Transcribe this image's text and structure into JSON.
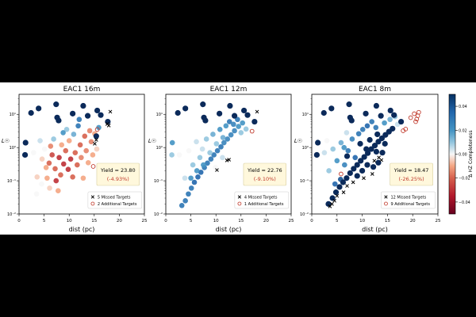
{
  "chart_data": {
    "type": "scatter",
    "xlabel": "dist (pc)",
    "ylabel": "L☉",
    "xlim": [
      0,
      25
    ],
    "ylim": [
      0.01,
      40
    ],
    "yscale": "log",
    "x_ticks": [
      "0",
      "5",
      "10",
      "15",
      "20",
      "25"
    ],
    "y_ticks": [
      "10⁻²",
      "10⁻¹",
      "10⁰",
      "10¹"
    ],
    "colorbar": {
      "label": "Δ HZ Completeness",
      "ticks": [
        "0.04",
        "0.02",
        "0.00",
        "−0.02",
        "−0.04"
      ],
      "range": [
        -0.05,
        0.05
      ],
      "colormap": "RdBu (red = negative, blue = positive)"
    },
    "legend_labels": {
      "missed": "Missed Targets",
      "additional": "Additional Targets"
    },
    "yield_label": "Yield",
    "panels": [
      {
        "title": "EAC1 16m",
        "yield": "23.80",
        "yield_change": "(-4.93%)",
        "missed_count": "5",
        "additional_count": "2",
        "dominant": "red",
        "missed_targets": [
          [
            18.2,
            12.0
          ],
          [
            17.6,
            5.1
          ],
          [
            17.9,
            4.6
          ],
          [
            15.4,
            1.7
          ],
          [
            15.1,
            1.3
          ]
        ],
        "additional_targets": [
          [
            15.6,
            3.5
          ],
          [
            14.8,
            0.27
          ]
        ],
        "navy_points": [
          [
            2.4,
            11.0
          ],
          [
            3.9,
            15.0
          ],
          [
            7.4,
            20.0
          ],
          [
            7.6,
            8.0
          ],
          [
            7.9,
            6.5
          ],
          [
            10.7,
            10.5
          ],
          [
            12.8,
            18.0
          ],
          [
            13.7,
            9.0
          ],
          [
            15.6,
            13.0
          ],
          [
            16.3,
            9.5
          ],
          [
            17.7,
            6.0
          ],
          [
            1.3,
            1.4
          ],
          [
            1.2,
            0.6
          ],
          [
            15.4,
            2.2
          ]
        ],
        "cloud": [
          [
            2.9,
            0.7,
            0.0
          ],
          [
            3.6,
            0.13,
            -0.005
          ],
          [
            3.5,
            0.04,
            0.0
          ],
          [
            4.2,
            1.6,
            0.005
          ],
          [
            4.6,
            0.45,
            -0.005
          ],
          [
            5.1,
            0.9,
            0.0
          ],
          [
            5.6,
            0.12,
            -0.01
          ],
          [
            6.0,
            0.34,
            -0.02
          ],
          [
            6.1,
            0.06,
            -0.005
          ],
          [
            6.6,
            0.6,
            -0.025
          ],
          [
            6.9,
            1.8,
            0.01
          ],
          [
            7.2,
            0.23,
            -0.02
          ],
          [
            7.4,
            0.1,
            -0.03
          ],
          [
            7.8,
            0.05,
            -0.01
          ],
          [
            8.0,
            0.5,
            -0.03
          ],
          [
            8.3,
            0.15,
            -0.02
          ],
          [
            8.5,
            1.2,
            -0.01
          ],
          [
            8.9,
            0.32,
            -0.03
          ],
          [
            9.3,
            0.8,
            -0.02
          ],
          [
            9.5,
            3.5,
            0.01
          ],
          [
            9.8,
            0.22,
            -0.03
          ],
          [
            10.0,
            1.6,
            -0.01
          ],
          [
            10.3,
            0.45,
            -0.03
          ],
          [
            10.7,
            0.13,
            -0.02
          ],
          [
            10.9,
            2.5,
            0.015
          ],
          [
            11.2,
            0.7,
            -0.02
          ],
          [
            11.6,
            0.3,
            -0.02
          ],
          [
            11.8,
            4.5,
            0.03
          ],
          [
            12.2,
            1.2,
            -0.02
          ],
          [
            12.4,
            0.5,
            -0.015
          ],
          [
            12.8,
            0.12,
            -0.01
          ],
          [
            13.1,
            2.2,
            -0.02
          ],
          [
            13.4,
            0.8,
            -0.015
          ],
          [
            13.8,
            0.35,
            -0.01
          ],
          [
            14.1,
            3.2,
            -0.015
          ],
          [
            14.4,
            1.5,
            -0.015
          ],
          [
            14.7,
            0.6,
            -0.01
          ],
          [
            15.1,
            2.6,
            -0.01
          ],
          [
            15.5,
            0.9,
            -0.005
          ],
          [
            15.9,
            4.0,
            0.02
          ],
          [
            12.0,
            7.0,
            0.03
          ],
          [
            8.8,
            2.8,
            0.02
          ],
          [
            6.3,
            1.1,
            -0.015
          ],
          [
            5.4,
            0.25,
            -0.01
          ],
          [
            4.5,
            0.08,
            0.0
          ]
        ]
      },
      {
        "title": "EAC1 12m",
        "yield": "22.76",
        "yield_change": "(-9.10%)",
        "missed_count": "4",
        "additional_count": "1",
        "dominant": "blue",
        "missed_targets": [
          [
            18.2,
            12.0
          ],
          [
            12.6,
            0.43
          ],
          [
            12.2,
            0.41
          ],
          [
            10.2,
            0.21
          ]
        ],
        "additional_targets": [
          [
            17.2,
            3.1
          ]
        ],
        "navy_points": [
          [
            2.4,
            11.0
          ],
          [
            3.9,
            15.0
          ],
          [
            7.4,
            20.0
          ],
          [
            7.6,
            8.0
          ],
          [
            7.9,
            6.5
          ],
          [
            10.7,
            10.5
          ],
          [
            12.8,
            18.0
          ],
          [
            13.7,
            9.0
          ],
          [
            15.6,
            13.0
          ],
          [
            16.3,
            9.5
          ],
          [
            17.7,
            6.0
          ]
        ],
        "cloud": [
          [
            3.2,
            0.018,
            0.03
          ],
          [
            3.9,
            0.025,
            0.03
          ],
          [
            4.5,
            0.04,
            0.03
          ],
          [
            5.1,
            0.06,
            0.03
          ],
          [
            5.7,
            0.09,
            0.035
          ],
          [
            6.4,
            0.13,
            0.035
          ],
          [
            7.0,
            0.18,
            0.035
          ],
          [
            7.7,
            0.25,
            0.03
          ],
          [
            8.3,
            0.34,
            0.03
          ],
          [
            9.0,
            0.45,
            0.03
          ],
          [
            9.6,
            0.6,
            0.03
          ],
          [
            10.3,
            0.8,
            0.03
          ],
          [
            11.0,
            1.05,
            0.03
          ],
          [
            11.6,
            1.4,
            0.025
          ],
          [
            12.3,
            1.8,
            0.025
          ],
          [
            13.0,
            2.4,
            0.025
          ],
          [
            13.7,
            3.2,
            0.025
          ],
          [
            14.5,
            4.3,
            0.02
          ],
          [
            15.3,
            5.5,
            0.02
          ],
          [
            2.7,
            0.6,
            0.0
          ],
          [
            3.8,
            0.12,
            0.005
          ],
          [
            4.6,
            0.8,
            0.0
          ],
          [
            5.4,
            0.3,
            0.01
          ],
          [
            6.1,
            1.5,
            0.005
          ],
          [
            6.8,
            0.5,
            0.01
          ],
          [
            7.3,
            0.9,
            0.005
          ],
          [
            8.1,
            1.8,
            0.01
          ],
          [
            8.8,
            0.7,
            0.01
          ],
          [
            9.4,
            2.5,
            0.015
          ],
          [
            10.1,
            1.3,
            0.01
          ],
          [
            10.8,
            3.5,
            0.02
          ],
          [
            11.4,
            2.0,
            0.015
          ],
          [
            12.0,
            4.5,
            0.02
          ],
          [
            12.7,
            6.0,
            0.03
          ],
          [
            13.5,
            5.0,
            0.025
          ],
          [
            14.3,
            7.0,
            0.03
          ],
          [
            15.0,
            2.8,
            0.01
          ],
          [
            16.0,
            3.6,
            0.01
          ],
          [
            5.0,
            0.12,
            0.02
          ],
          [
            6.2,
            0.2,
            0.02
          ],
          [
            7.5,
            0.3,
            0.02
          ],
          [
            9.9,
            0.25,
            0.0
          ],
          [
            11.3,
            0.5,
            0.005
          ],
          [
            1.3,
            1.4,
            0.02
          ],
          [
            1.2,
            0.6,
            0.01
          ]
        ]
      },
      {
        "title": "EAC1 8m",
        "yield": "18.47",
        "yield_change": "(-26.25%)",
        "missed_count": "12",
        "additional_count": "9",
        "dominant": "navy",
        "missed_targets": [
          [
            3.6,
            0.017
          ],
          [
            4.0,
            0.02
          ],
          [
            4.5,
            0.025
          ],
          [
            5.0,
            0.035
          ],
          [
            6.3,
            0.045
          ],
          [
            7.0,
            0.07
          ],
          [
            8.2,
            0.09
          ],
          [
            10.3,
            0.12
          ],
          [
            12.0,
            0.16
          ],
          [
            12.4,
            0.4
          ],
          [
            13.3,
            0.5
          ],
          [
            13.8,
            0.42
          ]
        ],
        "additional_targets": [
          [
            21.2,
            11.5
          ],
          [
            21.0,
            9.0
          ],
          [
            20.8,
            7.2
          ],
          [
            20.6,
            6.0
          ],
          [
            20.3,
            10.4
          ],
          [
            19.6,
            7.9
          ],
          [
            18.6,
            3.6
          ],
          [
            18.1,
            3.2
          ],
          [
            5.8,
            0.16
          ]
        ],
        "navy_points": [
          [
            2.4,
            11.0
          ],
          [
            3.9,
            15.0
          ],
          [
            7.4,
            20.0
          ],
          [
            7.6,
            8.0
          ],
          [
            7.9,
            6.5
          ],
          [
            10.7,
            10.5
          ],
          [
            12.8,
            18.0
          ],
          [
            13.7,
            9.0
          ],
          [
            15.6,
            13.0
          ],
          [
            16.3,
            9.5
          ],
          [
            17.7,
            6.0
          ],
          [
            1.2,
            1.4
          ],
          [
            1.0,
            0.6
          ],
          [
            3.3,
            0.02
          ],
          [
            4.1,
            0.03
          ],
          [
            4.8,
            0.045
          ],
          [
            5.5,
            0.065
          ],
          [
            6.2,
            0.09
          ],
          [
            6.9,
            0.12
          ],
          [
            7.6,
            0.17
          ],
          [
            8.3,
            0.23
          ],
          [
            9.0,
            0.3
          ],
          [
            9.7,
            0.4
          ],
          [
            10.4,
            0.52
          ],
          [
            11.1,
            0.68
          ],
          [
            11.8,
            0.9
          ],
          [
            12.5,
            1.15
          ],
          [
            13.2,
            1.5
          ],
          [
            13.9,
            1.9
          ],
          [
            14.6,
            2.4
          ],
          [
            15.3,
            3.0
          ],
          [
            16.0,
            3.7
          ],
          [
            9.0,
            0.14
          ],
          [
            10.0,
            0.2
          ],
          [
            11.0,
            0.3
          ],
          [
            12.2,
            0.26
          ],
          [
            13.2,
            0.35
          ],
          [
            14.0,
            0.7
          ],
          [
            12.8,
            0.75
          ],
          [
            10.8,
            0.9
          ],
          [
            9.6,
            1.3
          ],
          [
            11.5,
            1.7
          ],
          [
            13.0,
            2.5
          ],
          [
            14.5,
            1.3
          ],
          [
            7.0,
            0.55
          ]
        ],
        "cloud": [
          [
            2.5,
            0.7,
            0.005
          ],
          [
            3.4,
            0.2,
            0.01
          ],
          [
            4.2,
            0.9,
            0.01
          ],
          [
            5.0,
            0.4,
            0.02
          ],
          [
            5.8,
            1.4,
            0.015
          ],
          [
            6.5,
            0.3,
            0.025
          ],
          [
            7.2,
            0.8,
            0.03
          ],
          [
            8.0,
            1.8,
            0.025
          ],
          [
            8.6,
            0.5,
            0.035
          ],
          [
            9.3,
            2.6,
            0.03
          ],
          [
            10.1,
            3.5,
            0.03
          ],
          [
            11.0,
            4.5,
            0.035
          ],
          [
            11.9,
            6.0,
            0.03
          ],
          [
            12.7,
            4.0,
            0.03
          ],
          [
            14.4,
            5.5,
            0.02
          ],
          [
            15.5,
            7.0,
            0.015
          ],
          [
            16.5,
            8.5,
            0.01
          ],
          [
            17.0,
            5.0,
            0.005
          ],
          [
            15.0,
            10.0,
            0.0
          ],
          [
            4.6,
            0.08,
            0.035
          ],
          [
            5.7,
            0.11,
            0.04
          ],
          [
            6.4,
            1.0,
            0.02
          ],
          [
            3.0,
            1.6,
            0.0
          ],
          [
            6.9,
            2.8,
            0.005
          ]
        ]
      }
    ]
  }
}
